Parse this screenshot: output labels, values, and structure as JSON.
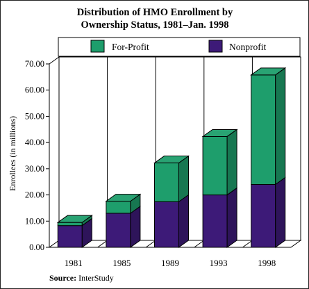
{
  "chart_data": {
    "type": "bar",
    "stacked": true,
    "three_d": true,
    "title_lines": [
      "Distribution of HMO Enrollment by",
      "Ownership Status, 1981–Jan. 1998"
    ],
    "ylabel": "Enrollees (in millions)",
    "xlabel": "",
    "ylim": [
      0,
      70
    ],
    "yticks": [
      0,
      10,
      20,
      30,
      40,
      50,
      60,
      70
    ],
    "ytick_labels": [
      "0.00",
      "10.00",
      "20.00",
      "30.00",
      "40.00",
      "50.00",
      "60.00",
      "70.00"
    ],
    "grid": "vertical separators between categories",
    "legend_position": "top",
    "categories": [
      "1981",
      "1985",
      "1989",
      "1993",
      "1998"
    ],
    "series": [
      {
        "name": "Nonprofit",
        "color": "#3d1a78",
        "values": [
          8.3,
          13.0,
          17.4,
          20.0,
          24.0
        ]
      },
      {
        "name": "For-Profit",
        "color": "#1e9e6c",
        "values": [
          1.2,
          4.6,
          14.8,
          22.3,
          41.8
        ]
      }
    ]
  },
  "legend_order": [
    "For-Profit",
    "Nonprofit"
  ],
  "source": {
    "label": "Source:",
    "text": "InterStudy"
  }
}
